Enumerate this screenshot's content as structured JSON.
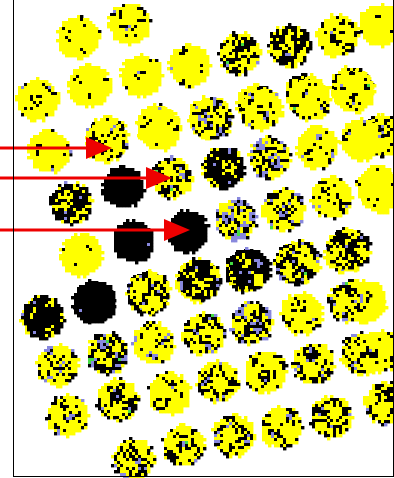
{
  "palette": {
    "yellow": "#ffff00",
    "black": "#000000",
    "periwinkle": "#8888dd",
    "green": "#44dd44",
    "arrow": "#ee0000",
    "frame": "#000000"
  },
  "rows": [
    {
      "dots": [
        {
          "mix": [
            0.78,
            0.14,
            0.06,
            0.02
          ]
        },
        {
          "mix": [
            0.7,
            0.2,
            0.07,
            0.03
          ]
        }
      ]
    },
    {
      "dots": [
        {
          "mix": [
            0.72,
            0.18,
            0.07,
            0.03
          ]
        },
        {
          "mix": [
            0.82,
            0.1,
            0.05,
            0.03
          ]
        },
        {
          "mix": [
            0.84,
            0.09,
            0.05,
            0.02
          ]
        },
        {
          "mix": [
            0.78,
            0.14,
            0.06,
            0.02
          ]
        },
        {
          "mix": [
            0.55,
            0.32,
            0.1,
            0.03
          ]
        },
        {
          "mix": [
            0.45,
            0.45,
            0.08,
            0.02
          ]
        },
        {
          "mix": [
            0.62,
            0.28,
            0.08,
            0.02
          ]
        },
        {
          "mix": [
            0.88,
            0.07,
            0.03,
            0.02
          ]
        }
      ]
    },
    {
      "dots": [
        {
          "mix": [
            0.66,
            0.22,
            0.09,
            0.03
          ]
        },
        {
          "mix": [
            0.74,
            0.16,
            0.07,
            0.03
          ]
        },
        {
          "mix": [
            0.82,
            0.11,
            0.05,
            0.02
          ]
        },
        {
          "mix": [
            0.78,
            0.13,
            0.06,
            0.03
          ]
        },
        {
          "mix": [
            0.6,
            0.26,
            0.1,
            0.04
          ]
        },
        {
          "mix": [
            0.66,
            0.22,
            0.09,
            0.03
          ]
        },
        {
          "mix": [
            0.52,
            0.35,
            0.1,
            0.03
          ]
        },
        {
          "mix": [
            0.5,
            0.3,
            0.16,
            0.04
          ]
        }
      ]
    },
    {
      "dots": [
        {
          "mix": [
            0.8,
            0.1,
            0.07,
            0.03
          ]
        },
        {
          "mix": [
            0.62,
            0.26,
            0.09,
            0.03
          ]
        },
        {
          "mix": [
            0.8,
            0.12,
            0.05,
            0.03
          ]
        },
        {
          "mix": [
            0.52,
            0.22,
            0.2,
            0.06
          ]
        },
        {
          "mix": [
            0.66,
            0.18,
            0.12,
            0.04
          ]
        },
        {
          "mix": [
            0.72,
            0.16,
            0.09,
            0.03
          ]
        },
        {
          "mix": [
            0.74,
            0.16,
            0.07,
            0.03
          ]
        },
        {
          "mix": [
            0.64,
            0.24,
            0.09,
            0.03
          ]
        }
      ]
    },
    {
      "dots": [
        {
          "mix": [
            0.38,
            0.5,
            0.09,
            0.03
          ]
        },
        {
          "mix": [
            0.02,
            0.96,
            0.02,
            0.0
          ]
        },
        {
          "mix": [
            0.52,
            0.32,
            0.12,
            0.04
          ]
        },
        {
          "mix": [
            0.3,
            0.55,
            0.12,
            0.03
          ]
        },
        {
          "mix": [
            0.48,
            0.2,
            0.26,
            0.06
          ]
        },
        {
          "mix": [
            0.72,
            0.12,
            0.12,
            0.04
          ]
        },
        {
          "mix": [
            0.82,
            0.1,
            0.05,
            0.03
          ]
        },
        {
          "mix": [
            0.9,
            0.06,
            0.03,
            0.01
          ]
        }
      ]
    },
    {
      "dots": [
        {
          "mix": [
            0.86,
            0.09,
            0.04,
            0.01
          ]
        },
        {
          "mix": [
            0.03,
            0.95,
            0.02,
            0.0
          ]
        },
        {
          "mix": [
            0.02,
            0.96,
            0.02,
            0.0
          ]
        },
        {
          "mix": [
            0.46,
            0.2,
            0.28,
            0.06
          ]
        },
        {
          "mix": [
            0.56,
            0.18,
            0.2,
            0.06
          ]
        },
        {
          "mix": [
            0.66,
            0.2,
            0.1,
            0.04
          ]
        },
        {
          "mix": [
            0.84,
            0.1,
            0.04,
            0.02
          ]
        }
      ]
    },
    {
      "dots": [
        {
          "mix": [
            0.58,
            0.34,
            0.06,
            0.02
          ]
        },
        {
          "mix": [
            0.04,
            0.94,
            0.02,
            0.0
          ]
        },
        {
          "mix": [
            0.46,
            0.36,
            0.14,
            0.04
          ]
        },
        {
          "mix": [
            0.62,
            0.22,
            0.11,
            0.05
          ]
        },
        {
          "mix": [
            0.36,
            0.42,
            0.16,
            0.06
          ]
        },
        {
          "mix": [
            0.4,
            0.36,
            0.18,
            0.06
          ]
        },
        {
          "mix": [
            0.8,
            0.13,
            0.05,
            0.02
          ]
        },
        {
          "mix": [
            0.96,
            0.03,
            0.01,
            0.0
          ]
        }
      ]
    },
    {
      "dots": [
        {
          "mix": [
            0.2,
            0.7,
            0.07,
            0.03
          ]
        },
        {
          "mix": [
            0.06,
            0.92,
            0.02,
            0.0
          ]
        },
        {
          "mix": [
            0.58,
            0.26,
            0.12,
            0.04
          ]
        },
        {
          "mix": [
            0.4,
            0.44,
            0.12,
            0.04
          ]
        },
        {
          "mix": [
            0.3,
            0.5,
            0.15,
            0.05
          ]
        },
        {
          "mix": [
            0.52,
            0.3,
            0.13,
            0.05
          ]
        },
        {
          "mix": [
            0.4,
            0.44,
            0.12,
            0.04
          ]
        },
        {
          "mix": [
            0.97,
            0.02,
            0.01,
            0.0
          ]
        }
      ]
    },
    {
      "dots": [
        {
          "mix": [
            0.6,
            0.14,
            0.22,
            0.04
          ]
        },
        {
          "mix": [
            0.4,
            0.32,
            0.2,
            0.08
          ]
        },
        {
          "mix": [
            0.68,
            0.14,
            0.14,
            0.04
          ]
        },
        {
          "mix": [
            0.58,
            0.22,
            0.16,
            0.04
          ]
        },
        {
          "mix": [
            0.46,
            0.24,
            0.24,
            0.06
          ]
        },
        {
          "mix": [
            0.7,
            0.16,
            0.1,
            0.04
          ]
        },
        {
          "mix": [
            0.58,
            0.26,
            0.12,
            0.04
          ]
        },
        {
          "mix": [
            0.74,
            0.12,
            0.1,
            0.04
          ]
        }
      ]
    },
    {
      "dots": [
        {
          "mix": [
            0.6,
            0.22,
            0.14,
            0.04
          ]
        },
        {
          "mix": [
            0.54,
            0.3,
            0.12,
            0.04
          ]
        },
        {
          "mix": [
            0.7,
            0.16,
            0.1,
            0.04
          ]
        },
        {
          "mix": [
            0.62,
            0.22,
            0.12,
            0.04
          ]
        },
        {
          "mix": [
            0.64,
            0.24,
            0.09,
            0.03
          ]
        },
        {
          "mix": [
            0.52,
            0.3,
            0.14,
            0.04
          ]
        },
        {
          "mix": [
            0.58,
            0.3,
            0.09,
            0.03
          ]
        },
        {
          "mix": [
            0.56,
            0.34,
            0.07,
            0.03
          ]
        }
      ]
    },
    {
      "dots": [
        {
          "mix": [
            0.52,
            0.26,
            0.16,
            0.06
          ]
        },
        {
          "mix": [
            0.6,
            0.24,
            0.12,
            0.04
          ]
        },
        {
          "mix": [
            0.62,
            0.22,
            0.12,
            0.04
          ]
        },
        {
          "mix": [
            0.64,
            0.24,
            0.09,
            0.03
          ]
        },
        {
          "mix": [
            0.52,
            0.34,
            0.1,
            0.04
          ]
        }
      ]
    }
  ],
  "arrows": [
    {
      "target_row": 3,
      "target_dot": 1
    },
    {
      "target_row": 4,
      "target_dot": 2
    },
    {
      "target_row": 5,
      "target_dot": 2
    }
  ]
}
